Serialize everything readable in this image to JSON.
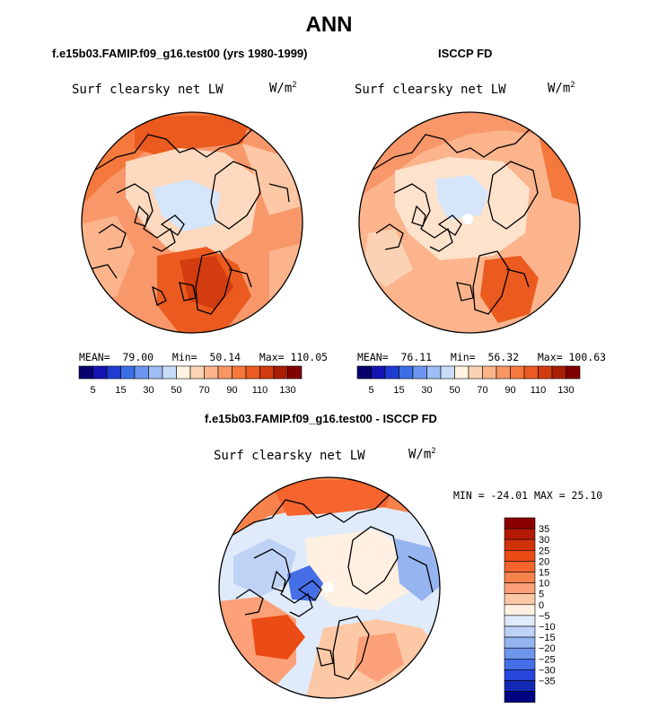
{
  "page_title": "ANN",
  "panels": [
    {
      "title": "f.e15b03.FAMIP.f09_g16.test00 (yrs 1980-1999)",
      "variable": "Surf clearsky net LW",
      "units_base": "W/m",
      "units_exp": "2",
      "stats": {
        "mean_label": "MEAN=",
        "mean": "79.00",
        "min_label": "Min=",
        "min": "50.14",
        "max_label": "Max=",
        "max": "110.05"
      }
    },
    {
      "title": "ISCCP FD",
      "variable": "Surf clearsky net LW",
      "units_base": "W/m",
      "units_exp": "2",
      "stats": {
        "mean_label": "MEAN=",
        "mean": "76.11",
        "min_label": "Min=",
        "min": "56.32",
        "max_label": "Max=",
        "max": "100.63"
      }
    },
    {
      "title": "f.e15b03.FAMIP.f09_g16.test00 - ISCCP FD",
      "variable": "Surf clearsky net LW",
      "units_base": "W/m",
      "units_exp": "2",
      "min_max_text": "MIN = -24.01 MAX =  25.10"
    }
  ],
  "colorbar_abs": {
    "ticks": [
      "5",
      "15",
      "30",
      "50",
      "70",
      "90",
      "110",
      "130"
    ],
    "colors": [
      "#08006e",
      "#1414b4",
      "#1e3cd2",
      "#3c6ee6",
      "#6e96f0",
      "#9ebef5",
      "#c8dcf8",
      "#fff3e1",
      "#fcd2b4",
      "#fbb48c",
      "#f89664",
      "#f5783c",
      "#eb5a1e",
      "#d23c0f",
      "#aa1e05",
      "#820000"
    ]
  },
  "colorbar_diff": {
    "ticks": [
      "35",
      "30",
      "25",
      "20",
      "15",
      "10",
      "5",
      "0",
      "−5",
      "−10",
      "−15",
      "−20",
      "−25",
      "−30",
      "−35"
    ],
    "colors": [
      "#8c0000",
      "#b41905",
      "#d2320a",
      "#eb4b14",
      "#f5642d",
      "#f8824b",
      "#fba078",
      "#fdc8a5",
      "#fff0e1",
      "#dfebfa",
      "#bed2f5",
      "#96b4f0",
      "#6e96eb",
      "#466ee6",
      "#2846dc",
      "#1428b4",
      "#000082"
    ]
  },
  "chart_data": [
    {
      "type": "heatmap",
      "title": "f.e15b03.FAMIP.f09_g16.test00 (yrs 1980-1999)",
      "subtitle": "Surf clearsky net LW",
      "units": "W/m2",
      "projection": "north polar stereographic",
      "contour_levels": [
        5,
        10,
        15,
        20,
        30,
        40,
        50,
        60,
        70,
        80,
        90,
        100,
        110,
        120,
        130
      ],
      "mean": 79.0,
      "min": 50.14,
      "max": 110.05
    },
    {
      "type": "heatmap",
      "title": "ISCCP FD",
      "subtitle": "Surf clearsky net LW",
      "units": "W/m2",
      "projection": "north polar stereographic",
      "contour_levels": [
        5,
        10,
        15,
        20,
        30,
        40,
        50,
        60,
        70,
        80,
        90,
        100,
        110,
        120,
        130
      ],
      "mean": 76.11,
      "min": 56.32,
      "max": 100.63
    },
    {
      "type": "heatmap",
      "title": "f.e15b03.FAMIP.f09_g16.test00 - ISCCP FD",
      "subtitle": "Surf clearsky net LW",
      "units": "W/m2",
      "projection": "north polar stereographic",
      "contour_levels": [
        -35,
        -30,
        -25,
        -20,
        -15,
        -10,
        -5,
        0,
        5,
        10,
        15,
        20,
        25,
        30,
        35
      ],
      "min": -24.01,
      "max": 25.1
    }
  ]
}
